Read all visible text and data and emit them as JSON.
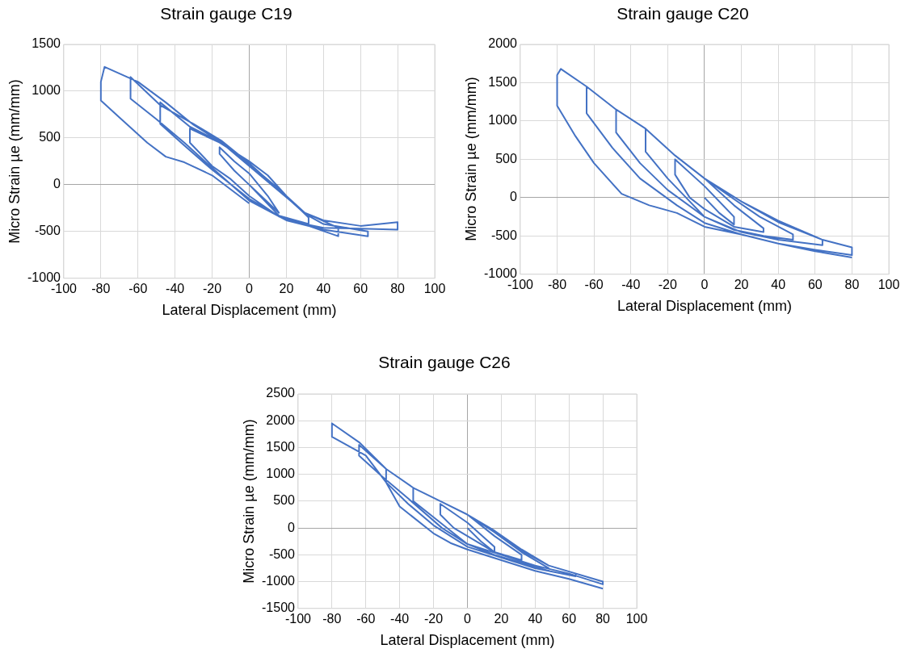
{
  "chart_data": [
    {
      "type": "line",
      "title": "Strain gauge C19",
      "xlabel": "Lateral Displacement (mm)",
      "ylabel": "Micro Strain µe (mm/mm)",
      "xlim": [
        -100,
        100
      ],
      "xticks": [
        -100,
        -80,
        -60,
        -40,
        -20,
        0,
        20,
        40,
        60,
        80,
        100
      ],
      "ylim": [
        -1000,
        1500
      ],
      "yticks": [
        -1000,
        -500,
        0,
        500,
        1000,
        1500
      ],
      "grid": true,
      "marker": "none",
      "line_style": "solid",
      "series": [
        {
          "color": "#4472c4",
          "x": [
            0,
            8,
            16,
            10,
            0,
            -8,
            -16,
            -16,
            -8,
            0,
            16,
            32,
            32,
            20,
            10,
            0,
            -16,
            -32,
            -32,
            -20,
            -10,
            0,
            16,
            32,
            48,
            48,
            30,
            15,
            0,
            -16,
            -32,
            -48,
            -48,
            -35,
            -20,
            0,
            20,
            40,
            64,
            64,
            40,
            30,
            15,
            0,
            -15,
            -30,
            -48,
            -64,
            -64,
            -50,
            -35,
            -20,
            0,
            20,
            40,
            60,
            80,
            80,
            60,
            40,
            30,
            15,
            0,
            -15,
            -30,
            -45,
            -60,
            -78,
            -80,
            -80,
            -70,
            -55,
            -45,
            -35,
            -20,
            0
          ],
          "values": [
            0,
            -150,
            -300,
            -120,
            120,
            250,
            400,
            330,
            150,
            0,
            -330,
            -420,
            -350,
            -120,
            100,
            250,
            450,
            600,
            450,
            200,
            60,
            -120,
            -340,
            -440,
            -550,
            -460,
            -300,
            -30,
            220,
            460,
            620,
            880,
            650,
            420,
            160,
            -150,
            -380,
            -480,
            -550,
            -500,
            -420,
            -310,
            -40,
            230,
            470,
            650,
            850,
            1150,
            920,
            700,
            450,
            180,
            -170,
            -380,
            -460,
            -470,
            -480,
            -400,
            -440,
            -380,
            -300,
            -50,
            200,
            450,
            640,
            880,
            1100,
            1260,
            1100,
            900,
            720,
            450,
            300,
            240,
            100,
            -200
          ]
        }
      ]
    },
    {
      "type": "line",
      "title": "Strain gauge C20",
      "xlabel": "Lateral Displacement (mm)",
      "ylabel": "Micro Strain µe (mm/mm)",
      "xlim": [
        -100,
        100
      ],
      "xticks": [
        -100,
        -80,
        -60,
        -40,
        -20,
        0,
        20,
        40,
        60,
        80,
        100
      ],
      "ylim": [
        -1000,
        2000
      ],
      "yticks": [
        -1000,
        -500,
        0,
        500,
        1000,
        1500,
        2000
      ],
      "grid": true,
      "marker": "none",
      "line_style": "solid",
      "series": [
        {
          "color": "#4472c4",
          "x": [
            0,
            8,
            16,
            16,
            0,
            -16,
            -16,
            -8,
            0,
            16,
            32,
            32,
            16,
            0,
            -16,
            -32,
            -32,
            -20,
            -10,
            0,
            16,
            32,
            48,
            48,
            30,
            16,
            0,
            -16,
            -32,
            -48,
            -48,
            -35,
            -20,
            0,
            20,
            40,
            64,
            64,
            40,
            20,
            0,
            -16,
            -32,
            -48,
            -64,
            -64,
            -50,
            -35,
            -15,
            0,
            20,
            40,
            60,
            80,
            80,
            64,
            40,
            20,
            0,
            -16,
            -32,
            -48,
            -64,
            -78,
            -80,
            -80,
            -70,
            -60,
            -45,
            -30,
            -15,
            0,
            20,
            40,
            60,
            80
          ],
          "values": [
            0,
            -200,
            -350,
            -250,
            150,
            500,
            300,
            0,
            -150,
            -380,
            -450,
            -400,
            -100,
            250,
            550,
            900,
            600,
            250,
            0,
            -250,
            -420,
            -500,
            -550,
            -480,
            -250,
            -20,
            250,
            550,
            900,
            1150,
            850,
            450,
            100,
            -250,
            -450,
            -550,
            -620,
            -550,
            -320,
            -50,
            250,
            550,
            900,
            1150,
            1450,
            1100,
            650,
            250,
            -100,
            -330,
            -480,
            -600,
            -680,
            -750,
            -650,
            -550,
            -300,
            -50,
            250,
            550,
            900,
            1150,
            1450,
            1680,
            1600,
            1200,
            800,
            450,
            50,
            -100,
            -200,
            -380,
            -480,
            -600,
            -700,
            -780
          ]
        }
      ]
    },
    {
      "type": "line",
      "title": "Strain gauge C26",
      "xlabel": "Lateral Displacement (mm)",
      "ylabel": "Micro Strain µe (mm/mm)",
      "xlim": [
        -100,
        100
      ],
      "xticks": [
        -100,
        -80,
        -60,
        -40,
        -20,
        0,
        20,
        40,
        60,
        80,
        100
      ],
      "ylim": [
        -1500,
        2500
      ],
      "yticks": [
        -1500,
        -1000,
        -500,
        0,
        500,
        1000,
        1500,
        2000,
        2500
      ],
      "grid": true,
      "marker": "none",
      "line_style": "solid",
      "series": [
        {
          "color": "#4472c4",
          "x": [
            0,
            8,
            16,
            16,
            0,
            -16,
            -16,
            -8,
            0,
            16,
            32,
            32,
            16,
            0,
            -16,
            -32,
            -32,
            -20,
            -10,
            0,
            16,
            32,
            48,
            48,
            32,
            16,
            0,
            -16,
            -32,
            -48,
            -48,
            -35,
            -20,
            0,
            20,
            40,
            64,
            64,
            48,
            32,
            16,
            0,
            -16,
            -32,
            -48,
            -64,
            -64,
            -50,
            -35,
            -15,
            0,
            20,
            40,
            60,
            80,
            80,
            48,
            32,
            16,
            0,
            -16,
            -32,
            -48,
            -64,
            -80,
            -80,
            -60,
            -48,
            -40,
            -20,
            -10,
            0,
            20,
            40,
            60,
            80
          ],
          "values": [
            0,
            -250,
            -450,
            -350,
            100,
            450,
            250,
            0,
            -150,
            -450,
            -600,
            -500,
            -150,
            250,
            500,
            750,
            500,
            200,
            -50,
            -300,
            -500,
            -650,
            -800,
            -750,
            -450,
            -80,
            250,
            500,
            750,
            1100,
            850,
            450,
            50,
            -350,
            -550,
            -750,
            -900,
            -850,
            -700,
            -420,
            -60,
            250,
            500,
            750,
            1100,
            1550,
            1350,
            950,
            550,
            0,
            -300,
            -500,
            -700,
            -850,
            -1050,
            -1000,
            -700,
            -400,
            -50,
            250,
            500,
            750,
            1100,
            1600,
            1950,
            1700,
            1350,
            850,
            400,
            -100,
            -280,
            -400,
            -600,
            -800,
            -950,
            -1130
          ]
        }
      ]
    }
  ]
}
